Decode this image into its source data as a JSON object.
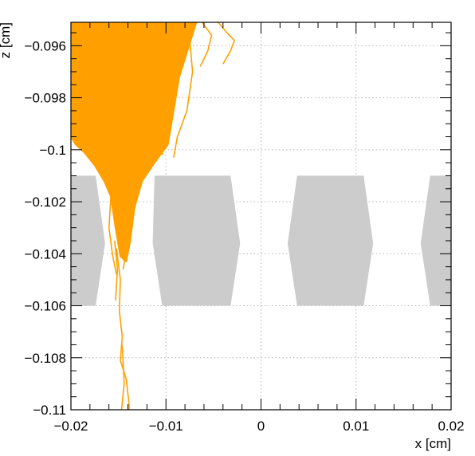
{
  "chart_data": {
    "type": "line",
    "title": "",
    "xlabel": "x [cm]",
    "ylabel": "z [cm]",
    "xlim": [
      -0.02,
      0.02
    ],
    "ylim": [
      -0.11,
      -0.0951
    ],
    "grid": true,
    "x_ticks": [
      {
        "value": -0.02,
        "label": "−0.02"
      },
      {
        "value": -0.01,
        "label": "−0.01"
      },
      {
        "value": 0,
        "label": "0"
      },
      {
        "value": 0.01,
        "label": "0.01"
      },
      {
        "value": 0.02,
        "label": "0.02"
      }
    ],
    "y_ticks": [
      {
        "value": -0.096,
        "label": "−0.096"
      },
      {
        "value": -0.098,
        "label": "−0.098"
      },
      {
        "value": -0.1,
        "label": "−0.1"
      },
      {
        "value": -0.102,
        "label": "−0.102"
      },
      {
        "value": -0.104,
        "label": "−0.104"
      },
      {
        "value": -0.106,
        "label": "−0.106"
      },
      {
        "value": -0.108,
        "label": "−0.108"
      },
      {
        "value": -0.11,
        "label": "−0.11"
      }
    ],
    "structures": [
      {
        "name": "electrode-1",
        "color": "#cccccc",
        "points": [
          [
            -0.0232,
            -0.101
          ],
          [
            -0.0174,
            -0.101
          ],
          [
            -0.0164,
            -0.1036
          ],
          [
            -0.0174,
            -0.106
          ],
          [
            -0.0232,
            -0.106
          ]
        ]
      },
      {
        "name": "electrode-2",
        "color": "#cccccc",
        "points": [
          [
            -0.0112,
            -0.101
          ],
          [
            -0.0032,
            -0.101
          ],
          [
            -0.0022,
            -0.1036
          ],
          [
            -0.0032,
            -0.106
          ],
          [
            -0.0104,
            -0.106
          ],
          [
            -0.0114,
            -0.1036
          ]
        ]
      },
      {
        "name": "electrode-3",
        "color": "#cccccc",
        "points": [
          [
            0.0038,
            -0.101
          ],
          [
            0.0108,
            -0.101
          ],
          [
            0.0118,
            -0.1036
          ],
          [
            0.0108,
            -0.106
          ],
          [
            0.0038,
            -0.106
          ],
          [
            0.0028,
            -0.1036
          ]
        ]
      },
      {
        "name": "electrode-4",
        "color": "#cccccc",
        "points": [
          [
            0.0178,
            -0.101
          ],
          [
            0.0236,
            -0.101
          ],
          [
            0.0236,
            -0.106
          ],
          [
            0.0178,
            -0.106
          ],
          [
            0.0168,
            -0.1036
          ]
        ]
      }
    ],
    "tracks_color": "#ffa000",
    "tracks_region": {
      "name": "electron-cloud",
      "points": [
        [
          -0.02,
          -0.0951
        ],
        [
          -0.0068,
          -0.0951
        ],
        [
          -0.0086,
          -0.0972
        ],
        [
          -0.0092,
          -0.0985
        ],
        [
          -0.0098,
          -0.0998
        ],
        [
          -0.0112,
          -0.1005
        ],
        [
          -0.0125,
          -0.1012
        ],
        [
          -0.0133,
          -0.1022
        ],
        [
          -0.0138,
          -0.1036
        ],
        [
          -0.0142,
          -0.1043
        ],
        [
          -0.0148,
          -0.1041
        ],
        [
          -0.0153,
          -0.103
        ],
        [
          -0.0158,
          -0.1018
        ],
        [
          -0.0165,
          -0.1012
        ],
        [
          -0.0175,
          -0.1006
        ],
        [
          -0.0186,
          -0.1001
        ],
        [
          -0.0195,
          -0.0998
        ],
        [
          -0.02,
          -0.0995
        ]
      ]
    },
    "series": [
      {
        "points": [
          [
            -0.0152,
            -0.1038
          ],
          [
            -0.0148,
            -0.105
          ],
          [
            -0.0149,
            -0.1062
          ],
          [
            -0.0146,
            -0.1072
          ],
          [
            -0.0148,
            -0.1081
          ],
          [
            -0.0142,
            -0.1088
          ],
          [
            -0.0139,
            -0.1097
          ],
          [
            -0.0138,
            -0.1104
          ],
          [
            -0.0132,
            -0.1107
          ],
          [
            -0.0131,
            -0.111
          ]
        ]
      },
      {
        "points": [
          [
            -0.0154,
            -0.1035
          ],
          [
            -0.0151,
            -0.1046
          ],
          [
            -0.0153,
            -0.1058
          ]
        ]
      },
      {
        "points": [
          [
            -0.0146,
            -0.1075
          ],
          [
            -0.0144,
            -0.109
          ],
          [
            -0.0147,
            -0.1101
          ],
          [
            -0.0152,
            -0.1109
          ]
        ]
      },
      {
        "points": [
          [
            -0.0138,
            -0.1106
          ],
          [
            -0.0145,
            -0.1109
          ],
          [
            -0.0151,
            -0.1109
          ]
        ]
      },
      {
        "points": [
          [
            -0.0088,
            -0.0951
          ],
          [
            -0.0075,
            -0.0958
          ],
          [
            -0.0072,
            -0.097
          ],
          [
            -0.0078,
            -0.0985
          ],
          [
            -0.0088,
            -0.0995
          ],
          [
            -0.0092,
            -0.1003
          ]
        ]
      },
      {
        "points": [
          [
            -0.0062,
            -0.0951
          ],
          [
            -0.0052,
            -0.0956
          ],
          [
            -0.0056,
            -0.0962
          ],
          [
            -0.0064,
            -0.0968
          ]
        ]
      },
      {
        "points": [
          [
            -0.0045,
            -0.0951
          ],
          [
            -0.0036,
            -0.0955
          ],
          [
            -0.0028,
            -0.0958
          ],
          [
            -0.0032,
            -0.0962
          ],
          [
            -0.004,
            -0.0967
          ]
        ]
      },
      {
        "points": [
          [
            -0.0098,
            -0.0955
          ],
          [
            -0.0096,
            -0.0972
          ],
          [
            -0.01,
            -0.0988
          ],
          [
            -0.0104,
            -0.1002
          ]
        ]
      },
      {
        "points": [
          [
            -0.0158,
            -0.1018
          ],
          [
            -0.016,
            -0.103
          ],
          [
            -0.0156,
            -0.1041
          ],
          [
            -0.0152,
            -0.1048
          ]
        ]
      },
      {
        "points": [
          [
            -0.0136,
            -0.1028
          ],
          [
            -0.0141,
            -0.1036
          ],
          [
            -0.0145,
            -0.1046
          ]
        ]
      }
    ]
  }
}
